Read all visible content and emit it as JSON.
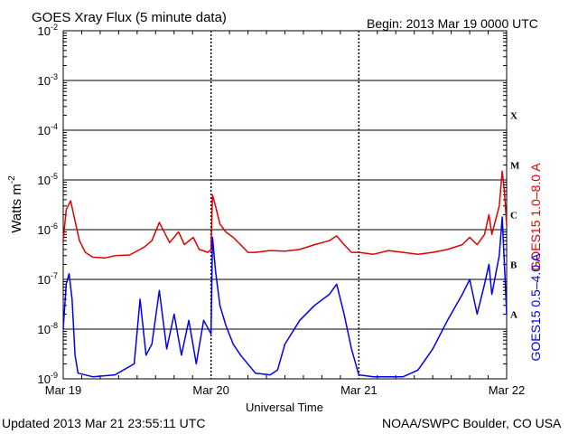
{
  "header": {
    "title": "GOES Xray Flux (5 minute data)",
    "begin": "Begin:  2013 Mar 19 0000 UTC"
  },
  "footer": {
    "updated": "Updated 2013 Mar 21 23:55:11 UTC",
    "credit": "NOAA/SWPC Boulder, CO USA"
  },
  "chart_data": {
    "type": "line",
    "title": "GOES Xray Flux (5 minute data)",
    "xlabel": "Universal Time",
    "ylabel": "Watts m",
    "ylabel_sup": "-2",
    "yscale": "log",
    "ylim": [
      1e-09,
      0.01
    ],
    "xlim_days": [
      0,
      3
    ],
    "x_ticks": [
      "Mar 19",
      "Mar 20",
      "Mar 21",
      "Mar 22"
    ],
    "y_ticks": [
      {
        "base": "10",
        "exp": "-2",
        "value": 0.01
      },
      {
        "base": "10",
        "exp": "-3",
        "value": 0.001
      },
      {
        "base": "10",
        "exp": "-4",
        "value": 0.0001
      },
      {
        "base": "10",
        "exp": "-5",
        "value": 1e-05
      },
      {
        "base": "10",
        "exp": "-6",
        "value": 1e-06
      },
      {
        "base": "10",
        "exp": "-7",
        "value": 1e-07
      },
      {
        "base": "10",
        "exp": "-8",
        "value": 1e-08
      },
      {
        "base": "10",
        "exp": "-9",
        "value": 1e-09
      }
    ],
    "flare_classes": [
      {
        "label": "X",
        "value": 0.0002
      },
      {
        "label": "M",
        "value": 2e-05
      },
      {
        "label": "C",
        "value": 2e-06
      },
      {
        "label": "B",
        "value": 2e-07
      },
      {
        "label": "A",
        "value": 2e-08
      }
    ],
    "grid": true,
    "series": [
      {
        "name": "GOES15 1.0–8.0 A",
        "color": "#e00000",
        "points": [
          [
            0.0,
            6e-07
          ],
          [
            0.02,
            2.5e-06
          ],
          [
            0.05,
            3.8e-06
          ],
          [
            0.08,
            1.5e-06
          ],
          [
            0.11,
            6e-07
          ],
          [
            0.15,
            3.5e-07
          ],
          [
            0.2,
            2.8e-07
          ],
          [
            0.28,
            2.7e-07
          ],
          [
            0.35,
            3e-07
          ],
          [
            0.45,
            3.1e-07
          ],
          [
            0.55,
            4.5e-07
          ],
          [
            0.6,
            6e-07
          ],
          [
            0.65,
            1.4e-06
          ],
          [
            0.72,
            5.5e-07
          ],
          [
            0.78,
            9e-07
          ],
          [
            0.82,
            5e-07
          ],
          [
            0.88,
            7e-07
          ],
          [
            0.92,
            4e-07
          ],
          [
            0.98,
            3.5e-07
          ],
          [
            1.0,
            4e-07
          ],
          [
            1.01,
            5e-06
          ],
          [
            1.03,
            3e-06
          ],
          [
            1.06,
            1.3e-06
          ],
          [
            1.1,
            9e-07
          ],
          [
            1.15,
            7e-07
          ],
          [
            1.2,
            5e-07
          ],
          [
            1.25,
            3.5e-07
          ],
          [
            1.3,
            3.5e-07
          ],
          [
            1.4,
            3.8e-07
          ],
          [
            1.5,
            3.7e-07
          ],
          [
            1.6,
            4e-07
          ],
          [
            1.7,
            5e-07
          ],
          [
            1.8,
            6e-07
          ],
          [
            1.85,
            7.5e-07
          ],
          [
            1.9,
            5e-07
          ],
          [
            1.95,
            3.5e-07
          ],
          [
            2.0,
            3.5e-07
          ],
          [
            2.1,
            3.2e-07
          ],
          [
            2.2,
            3.8e-07
          ],
          [
            2.3,
            3.5e-07
          ],
          [
            2.4,
            3.2e-07
          ],
          [
            2.5,
            3.5e-07
          ],
          [
            2.6,
            4e-07
          ],
          [
            2.7,
            5e-07
          ],
          [
            2.75,
            7e-07
          ],
          [
            2.8,
            5e-07
          ],
          [
            2.85,
            8e-07
          ],
          [
            2.88,
            2e-06
          ],
          [
            2.9,
            8e-07
          ],
          [
            2.95,
            3e-06
          ],
          [
            2.97,
            1.5e-05
          ],
          [
            2.985,
            6e-06
          ],
          [
            3.0,
            1.2e-06
          ]
        ]
      },
      {
        "name": "GOES15 0.5–4.0 A",
        "color": "#0000ee",
        "points": [
          [
            0.0,
            1e-08
          ],
          [
            0.02,
            8e-08
          ],
          [
            0.04,
            1.3e-07
          ],
          [
            0.06,
            4e-08
          ],
          [
            0.08,
            3e-09
          ],
          [
            0.1,
            1.3e-09
          ],
          [
            0.2,
            1.1e-09
          ],
          [
            0.35,
            1.2e-09
          ],
          [
            0.48,
            2e-09
          ],
          [
            0.52,
            4e-08
          ],
          [
            0.56,
            3e-09
          ],
          [
            0.6,
            5e-09
          ],
          [
            0.65,
            6e-08
          ],
          [
            0.7,
            4e-09
          ],
          [
            0.75,
            2e-08
          ],
          [
            0.8,
            3e-09
          ],
          [
            0.85,
            1.5e-08
          ],
          [
            0.9,
            2e-09
          ],
          [
            0.95,
            1.5e-08
          ],
          [
            1.0,
            8e-09
          ],
          [
            1.01,
            7e-07
          ],
          [
            1.03,
            1.5e-07
          ],
          [
            1.06,
            3e-08
          ],
          [
            1.1,
            1.2e-08
          ],
          [
            1.15,
            5e-09
          ],
          [
            1.2,
            3e-09
          ],
          [
            1.3,
            1.3e-09
          ],
          [
            1.4,
            1.2e-09
          ],
          [
            1.45,
            1.5e-09
          ],
          [
            1.5,
            5e-09
          ],
          [
            1.6,
            1.5e-08
          ],
          [
            1.7,
            3e-08
          ],
          [
            1.8,
            5e-08
          ],
          [
            1.85,
            8e-08
          ],
          [
            1.9,
            2e-08
          ],
          [
            1.95,
            4e-09
          ],
          [
            2.0,
            1.2e-09
          ],
          [
            2.1,
            1.1e-09
          ],
          [
            2.2,
            1.1e-09
          ],
          [
            2.3,
            1.1e-09
          ],
          [
            2.4,
            1.5e-09
          ],
          [
            2.5,
            4e-09
          ],
          [
            2.6,
            1.5e-08
          ],
          [
            2.7,
            5e-08
          ],
          [
            2.75,
            1e-07
          ],
          [
            2.8,
            2e-08
          ],
          [
            2.85,
            8e-08
          ],
          [
            2.88,
            2e-07
          ],
          [
            2.9,
            5e-08
          ],
          [
            2.95,
            3e-07
          ],
          [
            2.97,
            1.8e-06
          ],
          [
            2.985,
            2e-07
          ],
          [
            3.0,
            2e-08
          ]
        ]
      }
    ]
  }
}
